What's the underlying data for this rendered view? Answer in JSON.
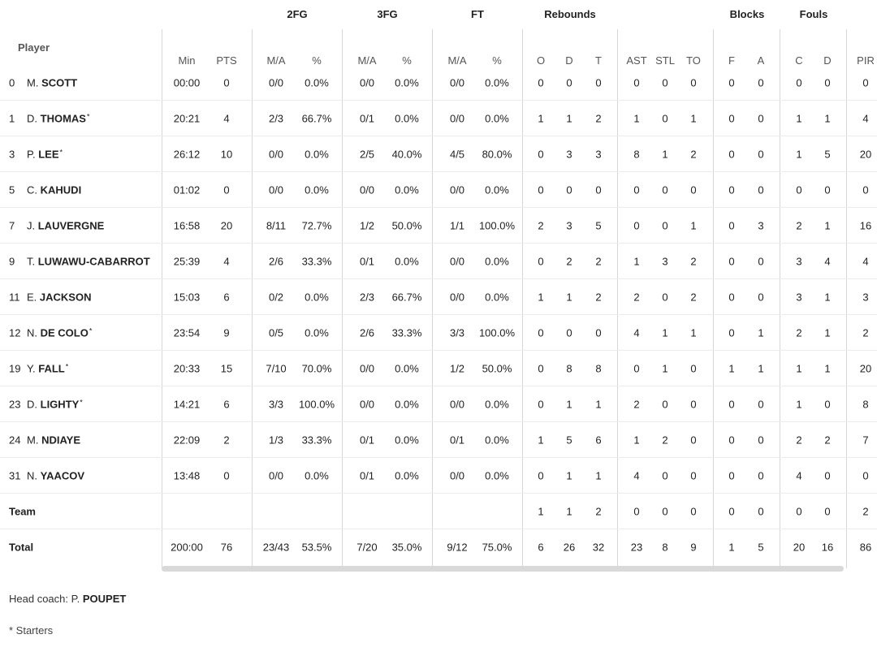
{
  "header": {
    "groups": [
      "2FG",
      "3FG",
      "FT",
      "Rebounds",
      "Blocks",
      "Fouls"
    ],
    "player_label": "Player",
    "columns": [
      "Min",
      "PTS",
      "M/A",
      "%",
      "M/A",
      "%",
      "M/A",
      "%",
      "O",
      "D",
      "T",
      "AST",
      "STL",
      "TO",
      "F",
      "A",
      "C",
      "D",
      "PIR"
    ]
  },
  "players": [
    {
      "num": "0",
      "first": "M.",
      "last": "SCOTT",
      "starter": false,
      "stats": [
        "00:00",
        "0",
        "0/0",
        "0.0%",
        "0/0",
        "0.0%",
        "0/0",
        "0.0%",
        "0",
        "0",
        "0",
        "0",
        "0",
        "0",
        "0",
        "0",
        "0",
        "0",
        "0"
      ]
    },
    {
      "num": "1",
      "first": "D.",
      "last": "THOMAS",
      "starter": true,
      "stats": [
        "20:21",
        "4",
        "2/3",
        "66.7%",
        "0/1",
        "0.0%",
        "0/0",
        "0.0%",
        "1",
        "1",
        "2",
        "1",
        "0",
        "1",
        "0",
        "0",
        "1",
        "1",
        "4"
      ]
    },
    {
      "num": "3",
      "first": "P.",
      "last": "LEE",
      "starter": true,
      "stats": [
        "26:12",
        "10",
        "0/0",
        "0.0%",
        "2/5",
        "40.0%",
        "4/5",
        "80.0%",
        "0",
        "3",
        "3",
        "8",
        "1",
        "2",
        "0",
        "0",
        "1",
        "5",
        "20"
      ]
    },
    {
      "num": "5",
      "first": "C.",
      "last": "KAHUDI",
      "starter": false,
      "stats": [
        "01:02",
        "0",
        "0/0",
        "0.0%",
        "0/0",
        "0.0%",
        "0/0",
        "0.0%",
        "0",
        "0",
        "0",
        "0",
        "0",
        "0",
        "0",
        "0",
        "0",
        "0",
        "0"
      ]
    },
    {
      "num": "7",
      "first": "J.",
      "last": "LAUVERGNE",
      "starter": false,
      "stats": [
        "16:58",
        "20",
        "8/11",
        "72.7%",
        "1/2",
        "50.0%",
        "1/1",
        "100.0%",
        "2",
        "3",
        "5",
        "0",
        "0",
        "1",
        "0",
        "3",
        "2",
        "1",
        "16"
      ]
    },
    {
      "num": "9",
      "first": "T.",
      "last": "LUWAWU-CABARROT",
      "starter": false,
      "stats": [
        "25:39",
        "4",
        "2/6",
        "33.3%",
        "0/1",
        "0.0%",
        "0/0",
        "0.0%",
        "0",
        "2",
        "2",
        "1",
        "3",
        "2",
        "0",
        "0",
        "3",
        "4",
        "4"
      ]
    },
    {
      "num": "11",
      "first": "E.",
      "last": "JACKSON",
      "starter": false,
      "stats": [
        "15:03",
        "6",
        "0/2",
        "0.0%",
        "2/3",
        "66.7%",
        "0/0",
        "0.0%",
        "1",
        "1",
        "2",
        "2",
        "0",
        "2",
        "0",
        "0",
        "3",
        "1",
        "3"
      ]
    },
    {
      "num": "12",
      "first": "N.",
      "last": "DE COLO",
      "starter": true,
      "stats": [
        "23:54",
        "9",
        "0/5",
        "0.0%",
        "2/6",
        "33.3%",
        "3/3",
        "100.0%",
        "0",
        "0",
        "0",
        "4",
        "1",
        "1",
        "0",
        "1",
        "2",
        "1",
        "2"
      ]
    },
    {
      "num": "19",
      "first": "Y.",
      "last": "FALL",
      "starter": true,
      "stats": [
        "20:33",
        "15",
        "7/10",
        "70.0%",
        "0/0",
        "0.0%",
        "1/2",
        "50.0%",
        "0",
        "8",
        "8",
        "0",
        "1",
        "0",
        "1",
        "1",
        "1",
        "1",
        "20"
      ]
    },
    {
      "num": "23",
      "first": "D.",
      "last": "LIGHTY",
      "starter": true,
      "stats": [
        "14:21",
        "6",
        "3/3",
        "100.0%",
        "0/0",
        "0.0%",
        "0/0",
        "0.0%",
        "0",
        "1",
        "1",
        "2",
        "0",
        "0",
        "0",
        "0",
        "1",
        "0",
        "8"
      ]
    },
    {
      "num": "24",
      "first": "M.",
      "last": "NDIAYE",
      "starter": false,
      "stats": [
        "22:09",
        "2",
        "1/3",
        "33.3%",
        "0/1",
        "0.0%",
        "0/1",
        "0.0%",
        "1",
        "5",
        "6",
        "1",
        "2",
        "0",
        "0",
        "0",
        "2",
        "2",
        "7"
      ]
    },
    {
      "num": "31",
      "first": "N.",
      "last": "YAACOV",
      "starter": false,
      "stats": [
        "13:48",
        "0",
        "0/0",
        "0.0%",
        "0/1",
        "0.0%",
        "0/0",
        "0.0%",
        "0",
        "1",
        "1",
        "4",
        "0",
        "0",
        "0",
        "0",
        "4",
        "0",
        "0"
      ]
    }
  ],
  "team": {
    "label": "Team",
    "stats": [
      "",
      "",
      "",
      "",
      "",
      "",
      "",
      "",
      "1",
      "1",
      "2",
      "0",
      "0",
      "0",
      "0",
      "0",
      "0",
      "0",
      "2"
    ]
  },
  "total": {
    "label": "Total",
    "stats": [
      "200:00",
      "76",
      "23/43",
      "53.5%",
      "7/20",
      "35.0%",
      "9/12",
      "75.0%",
      "6",
      "26",
      "32",
      "23",
      "8",
      "9",
      "1",
      "5",
      "20",
      "16",
      "86"
    ]
  },
  "footer": {
    "coach_prefix": "Head coach:",
    "coach_first": "P.",
    "coach_last": "POUPET",
    "starters_note": "* Starters"
  },
  "starter_mark": "*"
}
